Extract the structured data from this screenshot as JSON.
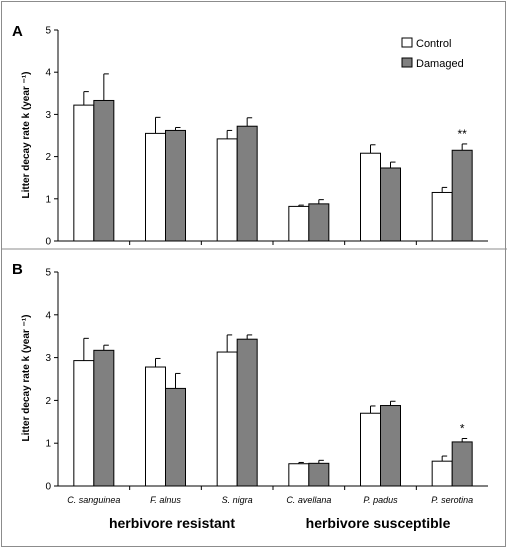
{
  "chart_data": [
    {
      "type": "bar",
      "panel_label": "A",
      "ylabel": "Litter decay rate k (year ⁻¹)",
      "ylim": [
        0,
        5
      ],
      "yticks": [
        "0",
        "1",
        "2",
        "3",
        "4",
        "5"
      ],
      "categories": [
        "C. sanguinea",
        "F. alnus",
        "S. nigra",
        "C. avellana",
        "P. padus",
        "P. serotina"
      ],
      "series": [
        {
          "name": "Control",
          "color": "#ffffff",
          "values": [
            3.22,
            2.55,
            2.42,
            0.82,
            2.08,
            1.15
          ],
          "errors": [
            0.32,
            0.38,
            0.2,
            0.03,
            0.2,
            0.12
          ]
        },
        {
          "name": "Damaged",
          "color": "#808080",
          "values": [
            3.33,
            2.62,
            2.72,
            0.88,
            1.73,
            2.15
          ],
          "errors": [
            0.63,
            0.07,
            0.2,
            0.1,
            0.14,
            0.15
          ]
        }
      ],
      "annotations": [
        {
          "category": "P. serotina",
          "text": "**"
        }
      ],
      "legend": "top-right",
      "grid": false
    },
    {
      "type": "bar",
      "panel_label": "B",
      "ylabel": "Litter decay rate k (year ⁻¹)",
      "ylim": [
        0,
        5
      ],
      "yticks": [
        "0",
        "1",
        "2",
        "3",
        "4",
        "5"
      ],
      "categories": [
        "C. sanguinea",
        "F. alnus",
        "S. nigra",
        "C. avellana",
        "P. padus",
        "P. serotina"
      ],
      "series": [
        {
          "name": "Control",
          "color": "#ffffff",
          "values": [
            2.93,
            2.78,
            3.13,
            0.52,
            1.7,
            0.58
          ],
          "errors": [
            0.52,
            0.2,
            0.4,
            0.03,
            0.17,
            0.12
          ]
        },
        {
          "name": "Damaged",
          "color": "#808080",
          "values": [
            3.17,
            2.28,
            3.43,
            0.53,
            1.88,
            1.03
          ],
          "errors": [
            0.12,
            0.35,
            0.1,
            0.07,
            0.1,
            0.08
          ]
        }
      ],
      "annotations": [
        {
          "category": "P. serotina",
          "text": "*"
        }
      ],
      "grid": false
    }
  ],
  "group_labels": [
    "herbivore resistant",
    "herbivore susceptible"
  ]
}
